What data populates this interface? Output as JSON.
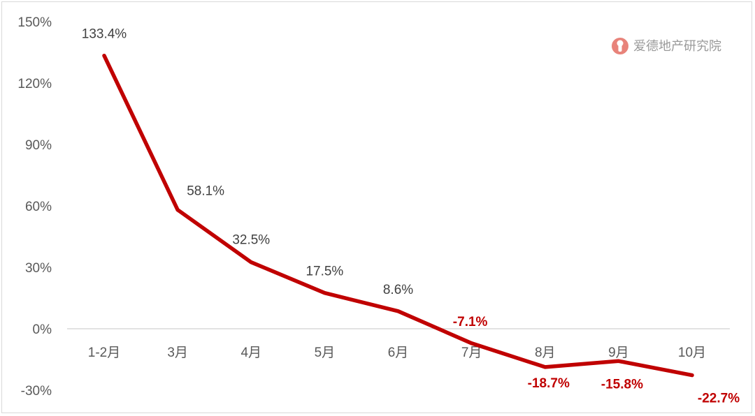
{
  "chart_data": {
    "type": "line",
    "categories": [
      "1-2月",
      "3月",
      "4月",
      "5月",
      "6月",
      "7月",
      "8月",
      "9月",
      "10月"
    ],
    "series": [
      {
        "values": [
          133.4,
          58.1,
          32.5,
          17.5,
          8.6,
          -7.1,
          -18.7,
          -15.8,
          -22.7
        ],
        "color": "#c00000"
      }
    ],
    "data_labels": [
      "133.4%",
      "58.1%",
      "32.5%",
      "17.5%",
      "8.6%",
      "-7.1%",
      "-18.7%",
      "-15.8%",
      "-22.7%"
    ],
    "y_ticks": [
      150,
      120,
      90,
      60,
      30,
      0,
      -30
    ],
    "y_tick_labels": [
      "150%",
      "120%",
      "90%",
      "60%",
      "30%",
      "0%",
      "-30%"
    ],
    "ylim": [
      -30,
      150
    ],
    "grid": false,
    "negative_label_color": "#c00000",
    "positive_label_color": "#404040"
  },
  "watermark": {
    "text": "爱德地产研究院",
    "logo_icon": "aide-logo-icon",
    "color": "#e8837a"
  }
}
